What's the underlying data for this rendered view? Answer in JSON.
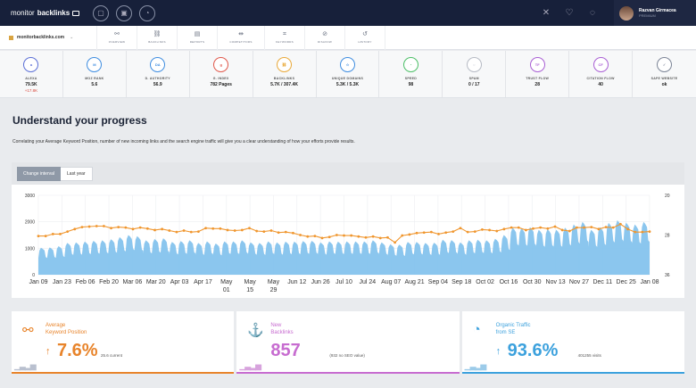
{
  "app": {
    "logo_light": "monitor",
    "logo_bold": "backlinks",
    "top_icons": [
      "briefcase-icon",
      "dashboard-icon",
      "gauge-icon"
    ],
    "right_icons": [
      "tools-icon",
      "heart-icon",
      "bell-icon"
    ],
    "user": {
      "name": "Razvan Girmacea",
      "plan": "PREMIUM"
    }
  },
  "nav": {
    "domain": "monitorbacklinks.com",
    "items": [
      {
        "label": "OVERVIEW",
        "icon": "glasses-icon",
        "glyph": "⚯"
      },
      {
        "label": "BACKLINKS",
        "icon": "link-icon",
        "glyph": "⛓"
      },
      {
        "label": "REPORTS",
        "icon": "report-icon",
        "glyph": "▤"
      },
      {
        "label": "COMPETITORS",
        "icon": "competitors-icon",
        "glyph": "⇹"
      },
      {
        "label": "KEYWORDS",
        "icon": "keywords-icon",
        "glyph": "⌗"
      },
      {
        "label": "DISAVOW",
        "icon": "disavow-icon",
        "glyph": "⊘"
      },
      {
        "label": "HISTORY",
        "icon": "history-icon",
        "glyph": "↺"
      }
    ]
  },
  "metrics": [
    {
      "label": "ALEXA",
      "value": "79.5K",
      "delta": "+17.8K",
      "abbr": "a",
      "color": "#5b6fd6"
    },
    {
      "label": "MOZ RANK",
      "value": "5.6",
      "delta": "",
      "abbr": "M",
      "color": "#3f8de0"
    },
    {
      "label": "D. AUTHORITY",
      "value": "56.9",
      "delta": "",
      "abbr": "DA",
      "color": "#3f8de0"
    },
    {
      "label": "G. INDEX",
      "value": "782 Pages",
      "delta": "",
      "abbr": "g",
      "color": "#e0584b"
    },
    {
      "label": "BACKLINKS",
      "value": "5.7K / 307.4K",
      "delta": "",
      "abbr": "⛓",
      "color": "#e9a93a"
    },
    {
      "label": "UNIQUE DOMAINS",
      "value": "5.3K / 5.3K",
      "delta": "",
      "abbr": "☆",
      "color": "#3f8de0"
    },
    {
      "label": "SPEED",
      "value": "98",
      "delta": "",
      "abbr": "◔",
      "color": "#4cbf67"
    },
    {
      "label": "SPAM",
      "value": "0 / 17",
      "delta": "",
      "abbr": "○",
      "color": "#b6bac4"
    },
    {
      "label": "TRUST FLOW",
      "value": "28",
      "delta": "",
      "abbr": "TF",
      "color": "#a95fd4"
    },
    {
      "label": "CITATION FLOW",
      "value": "40",
      "delta": "",
      "abbr": "CF",
      "color": "#a95fd4"
    },
    {
      "label": "SAFE WEBSITE",
      "value": "ok",
      "delta": "",
      "abbr": "✓",
      "color": "#7b8496"
    }
  ],
  "section": {
    "title": "Understand your progress",
    "description": "Correlating your Average Keyword Position, number of new incoming links and the search engine traffic will give you a clear understanding of how your efforts provide results."
  },
  "chart_controls": {
    "change_interval": "Change interval",
    "interval": "Last year"
  },
  "chart_data": {
    "type": "area",
    "x_labels": [
      "Jan 09",
      "Jan 23",
      "Feb 06",
      "Feb 20",
      "Mar 06",
      "Mar 20",
      "Apr 03",
      "Apr 17",
      "May 01",
      "May 15",
      "May 29",
      "Jun 12",
      "Jun 26",
      "Jul 10",
      "Jul 24",
      "Aug 07",
      "Aug 21",
      "Sep 04",
      "Sep 18",
      "Oct 02",
      "Oct 16",
      "Oct 30",
      "Nov 13",
      "Nov 27",
      "Dec 11",
      "Dec 25",
      "Jan 08"
    ],
    "y_left": {
      "ticks": [
        0,
        1000,
        2000,
        3000
      ],
      "min": 0,
      "max": 3000
    },
    "y_right": {
      "ticks": [
        20,
        28,
        36
      ],
      "min": 20,
      "max": 36,
      "inverted": true
    },
    "series": [
      {
        "name": "Organic Traffic",
        "type": "area",
        "color": "#7ec0ec",
        "axis": "left",
        "weekly_peaks": [
          1020,
          1030,
          1080,
          1200,
          1220,
          1250,
          1280,
          1300,
          1340,
          1420,
          1500,
          1460,
          1300,
          1350,
          1380,
          1240,
          1270,
          1300,
          1200,
          1260,
          1180,
          1260,
          1260,
          1300,
          1220,
          1200,
          1260,
          1220,
          1250,
          1250,
          1270,
          1280,
          1220,
          1260,
          1250,
          1260,
          1260,
          1260,
          1300,
          1220,
          1150,
          1140,
          1240,
          1240,
          1200,
          1210,
          1320,
          1310,
          1220,
          1300,
          1320,
          1300,
          1360,
          1500,
          1780,
          1760,
          1800,
          1700,
          1720,
          1700,
          1780,
          1900,
          2000,
          1700,
          1800,
          1960,
          2060,
          1970,
          1900,
          2000
        ]
      },
      {
        "name": "Average Keyword Position",
        "type": "line",
        "color": "#f0962e",
        "axis": "right",
        "values": [
          28.2,
          28.2,
          27.8,
          27.8,
          27.3,
          26.8,
          26.4,
          26.3,
          26.2,
          26.2,
          26.6,
          26.4,
          26.5,
          26.8,
          26.5,
          26.7,
          27.0,
          26.8,
          27.1,
          27.4,
          27.1,
          27.4,
          27.3,
          26.6,
          26.7,
          26.7,
          27.0,
          27.1,
          27.0,
          26.6,
          27.2,
          27.3,
          27.1,
          27.5,
          27.4,
          27.6,
          28.0,
          28.3,
          28.2,
          28.6,
          28.4,
          28.0,
          28.1,
          28.1,
          28.3,
          28.5,
          28.3,
          28.6,
          28.5,
          29.5,
          28.1,
          27.9,
          27.6,
          27.5,
          27.4,
          27.8,
          27.5,
          27.3,
          26.6,
          27.4,
          27.3,
          26.9,
          27.0,
          27.2,
          26.8,
          26.5,
          26.5,
          27.0,
          26.7,
          26.5,
          26.7,
          26.3,
          27.0,
          27.2,
          26.5,
          26.5,
          26.4,
          26.8,
          26.4,
          26.5,
          25.8,
          26.8,
          27.4,
          27.4,
          27.3
        ]
      }
    ]
  },
  "stats": [
    {
      "label_line1": "Average",
      "label_line2": "Keyword Position",
      "arrow": "🡑",
      "value": "7.6%",
      "sub": "25.6 current",
      "icon": "glasses-icon",
      "glyph": "⚯"
    },
    {
      "label_line1": "New",
      "label_line2": "Backlinks",
      "arrow": "",
      "value": "857",
      "sub": "(932 no SEO value)",
      "icon": "anchor-icon",
      "glyph": "⚓"
    },
    {
      "label_line1": "Organic Traffic",
      "label_line2": "from SE",
      "arrow": "🡑",
      "value": "93.6%",
      "sub": "401255 visits",
      "icon": "speedometer-icon",
      "glyph": "◔"
    }
  ]
}
